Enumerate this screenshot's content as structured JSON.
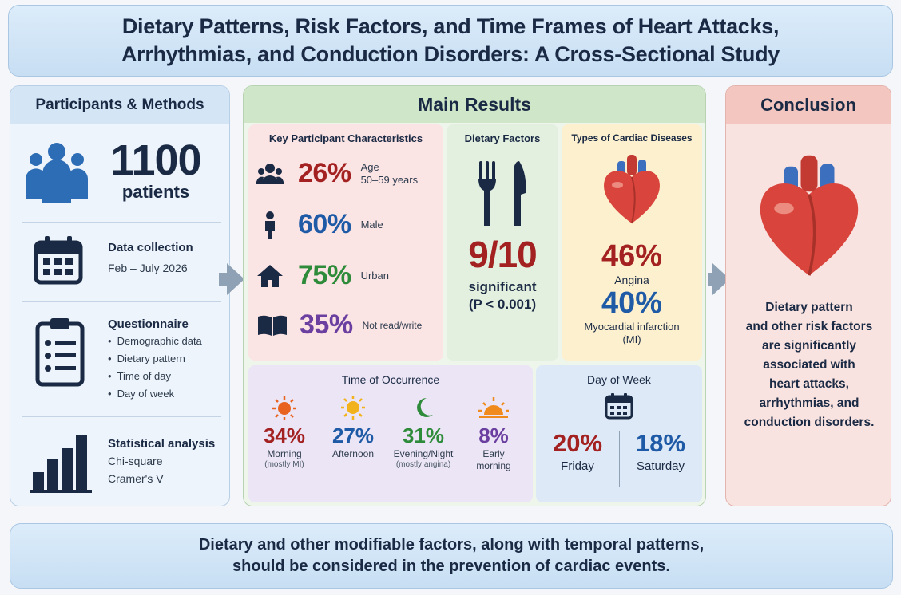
{
  "title": {
    "line1": "Dietary Patterns, Risk Factors, and Time Frames of Heart Attacks,",
    "line2": "Arrhythmias, and Conduction Disorders: A Cross-Sectional Study"
  },
  "methods": {
    "heading": "Participants & Methods",
    "participants": {
      "count": "1100",
      "label": "patients",
      "icon": "people-group-icon"
    },
    "data_collection": {
      "title": "Data collection",
      "text": "Feb – July 2026",
      "icon": "calendar-icon"
    },
    "questionnaire": {
      "title": "Questionnaire",
      "icon": "clipboard-checklist-icon",
      "items": [
        "Demographic data",
        "Dietary pattern",
        "Time of day",
        "Day of week"
      ]
    },
    "statistics": {
      "title": "Statistical analysis",
      "line1": "Chi-square",
      "line2": "Cramer's V",
      "icon": "bar-chart-icon"
    }
  },
  "results": {
    "heading": "Main Results",
    "characteristics": {
      "title": "Key Participant Characteristics",
      "rows": [
        {
          "pct": "26%",
          "label1": "Age",
          "label2": "50–59 years",
          "color": "#a32121",
          "icon": "people-icon"
        },
        {
          "pct": "60%",
          "label1": "Male",
          "label2": "",
          "color": "#1f5aa6",
          "icon": "person-icon"
        },
        {
          "pct": "75%",
          "label1": "Urban",
          "label2": "",
          "color": "#2e8b3a",
          "icon": "house-icon"
        },
        {
          "pct": "35%",
          "label1": "Not read/write",
          "label2": "",
          "color": "#6b3fa0",
          "icon": "book-icon"
        }
      ]
    },
    "dietary": {
      "title": "Dietary Factors",
      "icon": "fork-knife-icon",
      "ratio": "9/10",
      "label": "significant",
      "pvalue": "(P < 0.001)"
    },
    "diseases": {
      "title": "Types of Cardiac Diseases",
      "icon": "heart-icon",
      "items": [
        {
          "pct": "46%",
          "label": "Angina",
          "color": "#a32121"
        },
        {
          "pct": "40%",
          "label": "Myocardial infarction",
          "label2": "(MI)",
          "color": "#1f5aa6"
        }
      ]
    },
    "time": {
      "title": "Time of Occurrence",
      "items": [
        {
          "pct": "34%",
          "label": "Morning",
          "note": "(mostly MI)",
          "color": "#a32121",
          "icon": "sun-icon"
        },
        {
          "pct": "27%",
          "label": "Afternoon",
          "note": "",
          "color": "#1f5aa6",
          "icon": "sun-bright-icon"
        },
        {
          "pct": "31%",
          "label": "Evening/Night",
          "note": "(mostly angina)",
          "color": "#2e8b3a",
          "icon": "moon-icon"
        },
        {
          "pct": "8%",
          "label": "Early",
          "label2": "morning",
          "note": "",
          "color": "#6b3fa0",
          "icon": "sunrise-icon"
        }
      ]
    },
    "week": {
      "title": "Day of Week",
      "icon": "calendar-icon",
      "items": [
        {
          "pct": "20%",
          "label": "Friday",
          "color": "#a32121"
        },
        {
          "pct": "18%",
          "label": "Saturday",
          "color": "#1f5aa6"
        }
      ]
    }
  },
  "conclusion": {
    "heading": "Conclusion",
    "icon": "heart-icon",
    "lines": [
      "Dietary pattern",
      "and other risk factors",
      "are significantly",
      "associated with",
      "heart attacks,",
      "arrhythmias, and",
      "conduction disorders."
    ]
  },
  "footer": {
    "line1": "Dietary and other modifiable factors, along with temporal patterns,",
    "line2": "should be considered in the prevention of cardiac events."
  }
}
